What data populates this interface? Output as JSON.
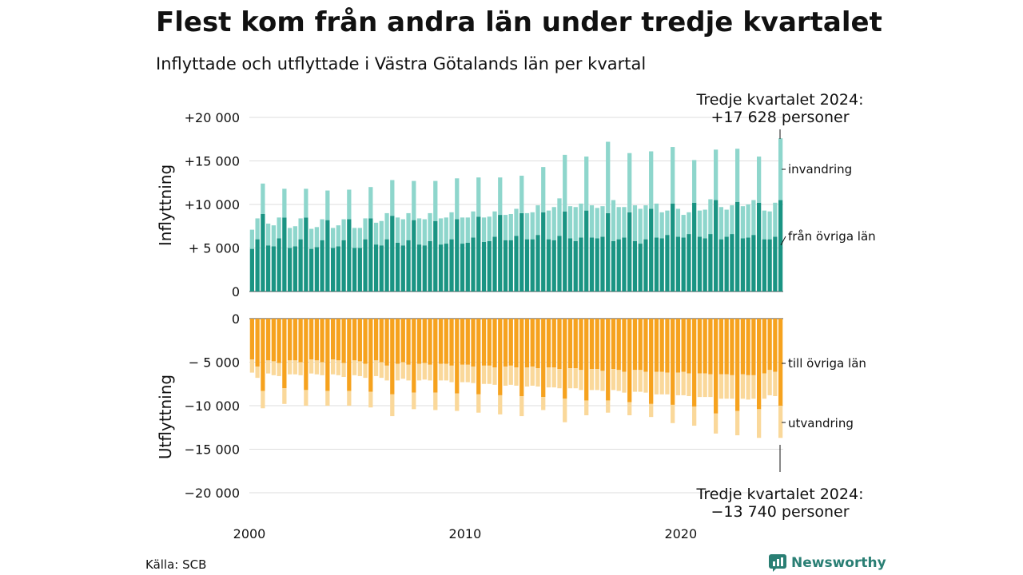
{
  "title": "Flest kom från andra län under tredje kvartalet",
  "subtitle": "Inflyttade och utflyttade i Västra Götalands län per kvartal",
  "source": "Källa: SCB",
  "brand": "Newsworthy",
  "colors": {
    "inflow_other_counties": "#1a9483",
    "immigration": "#8ed6cc",
    "outflow_other_counties": "#f6a21e",
    "emigration": "#fad89a"
  },
  "chart_data": {
    "type": "bar",
    "stacked": true,
    "x_start": "2000 Q1",
    "x_end": "2024 Q3",
    "x_ticks": [
      "2000",
      "2010",
      "2020"
    ],
    "grid": true,
    "top_panel": {
      "ylabel": "Inflyttning",
      "ylim": [
        0,
        20000
      ],
      "y_ticks": [
        "0",
        "+ 5 000",
        "+10 000",
        "+15 000",
        "+20 000"
      ],
      "series": [
        {
          "name": "från övriga län",
          "values": [
            4900,
            6000,
            8900,
            5300,
            5200,
            6100,
            8500,
            5000,
            5200,
            6000,
            8500,
            4900,
            5100,
            5900,
            8200,
            5000,
            5200,
            5900,
            8300,
            5000,
            5000,
            6000,
            8400,
            5400,
            5300,
            6000,
            8700,
            5600,
            5300,
            5900,
            8200,
            5400,
            5300,
            5800,
            8100,
            5400,
            5500,
            6000,
            8300,
            5500,
            5600,
            6200,
            8600,
            5700,
            5800,
            6300,
            8800,
            5900,
            5900,
            6400,
            9000,
            6000,
            6000,
            6500,
            9100,
            6000,
            5900,
            6400,
            9200,
            6100,
            5800,
            6200,
            9300,
            6200,
            6100,
            6300,
            9000,
            5800,
            6000,
            6200,
            9100,
            5800,
            5500,
            6000,
            9500,
            6200,
            6100,
            6500,
            10100,
            6300,
            6200,
            6600,
            10200,
            6300,
            6100,
            6600,
            10500,
            6000,
            6300,
            6600,
            10300,
            6100,
            6200,
            6500,
            10200,
            6000,
            6000,
            6300,
            10500
          ]
        },
        {
          "name": "invandring",
          "values": [
            2200,
            2400,
            3500,
            2500,
            2400,
            2400,
            3300,
            2300,
            2300,
            2400,
            3300,
            2300,
            2300,
            2400,
            3400,
            2300,
            2400,
            2400,
            3400,
            2300,
            2300,
            2400,
            3600,
            2500,
            2800,
            3000,
            4100,
            2900,
            3000,
            3100,
            4500,
            3000,
            3000,
            3200,
            4600,
            3000,
            3000,
            3100,
            4700,
            3000,
            2900,
            3000,
            4500,
            2800,
            2800,
            2900,
            4300,
            2900,
            3000,
            3100,
            4300,
            3000,
            3100,
            3400,
            5200,
            3300,
            3800,
            4300,
            6500,
            3700,
            3900,
            3900,
            6200,
            3700,
            3500,
            3500,
            8200,
            4700,
            3700,
            3500,
            6800,
            4100,
            4000,
            3900,
            6600,
            3900,
            3000,
            2800,
            6500,
            3200,
            2600,
            2500,
            4900,
            3000,
            3300,
            4000,
            5800,
            3700,
            3100,
            3300,
            6100,
            3700,
            3800,
            4000,
            5300,
            3300,
            3200,
            3900,
            7100
          ]
        }
      ],
      "annotation": [
        "Tredje kvartalet 2024:",
        "+17 628 personer"
      ]
    },
    "bottom_panel": {
      "ylabel": "Utflyttning",
      "ylim": [
        -20000,
        0
      ],
      "y_ticks": [
        "0",
        "− 5 000",
        "−10 000",
        "−15 000",
        "−20 000"
      ],
      "series": [
        {
          "name": "till övriga län",
          "values": [
            -4700,
            -5500,
            -8300,
            -4800,
            -4900,
            -5100,
            -8000,
            -4800,
            -4800,
            -5000,
            -8200,
            -4700,
            -4800,
            -5000,
            -8300,
            -4700,
            -4800,
            -5100,
            -8300,
            -4800,
            -4900,
            -5200,
            -8400,
            -4800,
            -5000,
            -5400,
            -8700,
            -5200,
            -5000,
            -5300,
            -8500,
            -5200,
            -5100,
            -5300,
            -8500,
            -5200,
            -5200,
            -5400,
            -8600,
            -5300,
            -5300,
            -5500,
            -8700,
            -5400,
            -5400,
            -5600,
            -8800,
            -5500,
            -5400,
            -5600,
            -8900,
            -5600,
            -5500,
            -5700,
            -9000,
            -5600,
            -5600,
            -5800,
            -9200,
            -5700,
            -5700,
            -5900,
            -9400,
            -5800,
            -5800,
            -6000,
            -9400,
            -5800,
            -5900,
            -6100,
            -9600,
            -5900,
            -5900,
            -6100,
            -9800,
            -6100,
            -6100,
            -6200,
            -9900,
            -6200,
            -6100,
            -6300,
            -10100,
            -6300,
            -6300,
            -6400,
            -10900,
            -6400,
            -6400,
            -6500,
            -10600,
            -6400,
            -6500,
            -6500,
            -10400,
            -6300,
            -5900,
            -6100,
            -10000
          ]
        },
        {
          "name": "utvandring",
          "values": [
            -1500,
            -1300,
            -2000,
            -1500,
            -1600,
            -1500,
            -1800,
            -1600,
            -1600,
            -1500,
            -1800,
            -1600,
            -1600,
            -1500,
            -1700,
            -1700,
            -1700,
            -1600,
            -1700,
            -1700,
            -1700,
            -1600,
            -1800,
            -1800,
            -1800,
            -1700,
            -2500,
            -1900,
            -1900,
            -1800,
            -1900,
            -1900,
            -1900,
            -1800,
            -2000,
            -1900,
            -1900,
            -1900,
            -2000,
            -2000,
            -2000,
            -1900,
            -2100,
            -2100,
            -2100,
            -2000,
            -2200,
            -2200,
            -2200,
            -2100,
            -2300,
            -2200,
            -2200,
            -2100,
            -1500,
            -2300,
            -2300,
            -2200,
            -2700,
            -2300,
            -2300,
            -2300,
            -1700,
            -2400,
            -2400,
            -2300,
            -1400,
            -2400,
            -2400,
            -2400,
            -1500,
            -2500,
            -2500,
            -2400,
            -1500,
            -2600,
            -2600,
            -2500,
            -2100,
            -2600,
            -2700,
            -2600,
            -2200,
            -2700,
            -2700,
            -2600,
            -2300,
            -2800,
            -2800,
            -2700,
            -2800,
            -2800,
            -2800,
            -2700,
            -3300,
            -2900,
            -2900,
            -2800,
            -3700
          ]
        }
      ],
      "annotation": [
        "Tredje kvartalet 2024:",
        "−13 740 personer"
      ]
    }
  }
}
